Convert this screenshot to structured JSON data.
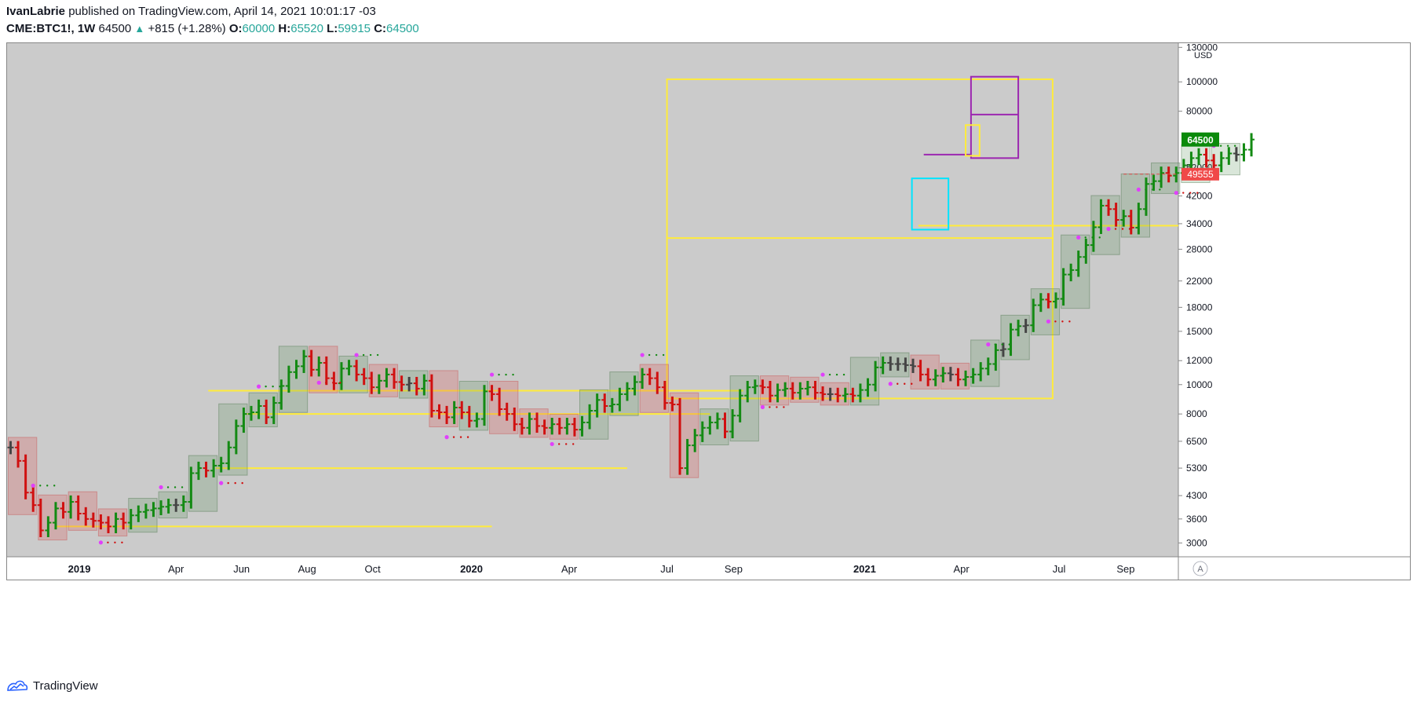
{
  "header": {
    "author": "IvanLabrie",
    "published_text": "published on TradingView.com, April 14, 2021 10:01:17 -03",
    "symbol": "CME:BTC1!, 1W",
    "last": "64500",
    "change_arrow": "▲",
    "change": "+815 (+1.28%)",
    "o_label": "O:",
    "o_value": "60000",
    "h_label": "H:",
    "h_value": "65520",
    "l_label": "L:",
    "l_value": "59915",
    "c_label": "C:",
    "c_value": "64500"
  },
  "footer": {
    "brand": "TradingView"
  },
  "colors": {
    "background": "#cbcbcb",
    "up_bar": "#138a13",
    "down_bar": "#d01010",
    "neutral_bar": "#444444",
    "yellow_lines": "#ffeb3b",
    "purple_box": "#9c27b0",
    "cyan_box": "#00e5ff",
    "last_price_badge": "#0b8a0b",
    "marker_badge": "#f04848"
  },
  "chart_data": {
    "type": "ohlc",
    "timeframe": "1W",
    "price_scale": "log",
    "unit": "USD",
    "y_ticks": [
      130000,
      100000,
      80000,
      52000,
      42000,
      34000,
      28000,
      22000,
      18000,
      15000,
      12000,
      10000,
      8000,
      6500,
      5300,
      4300,
      3600,
      3000
    ],
    "y_tick_labels": [
      "130000",
      "100000",
      "80000",
      "52000",
      "42000",
      "34000",
      "28000",
      "22000",
      "18000",
      "15000",
      "12000",
      "10000",
      "8000",
      "6500",
      "5300",
      "4300",
      "3600",
      "3000"
    ],
    "ylim": [
      2700,
      135000
    ],
    "x_ticks": [
      {
        "label": "2019",
        "date": "2019-01-01",
        "bold": true
      },
      {
        "label": "Apr",
        "date": "2019-04-01",
        "bold": false
      },
      {
        "label": "Jun",
        "date": "2019-06-01",
        "bold": false
      },
      {
        "label": "Aug",
        "date": "2019-08-01",
        "bold": false
      },
      {
        "label": "Oct",
        "date": "2019-10-01",
        "bold": false
      },
      {
        "label": "2020",
        "date": "2020-01-01",
        "bold": true
      },
      {
        "label": "Apr",
        "date": "2020-04-01",
        "bold": false
      },
      {
        "label": "Jul",
        "date": "2020-07-01",
        "bold": false
      },
      {
        "label": "Sep",
        "date": "2020-09-01",
        "bold": false
      },
      {
        "label": "2021",
        "date": "2021-01-01",
        "bold": true
      },
      {
        "label": "Apr",
        "date": "2021-04-01",
        "bold": false
      },
      {
        "label": "Jul",
        "date": "2021-07-01",
        "bold": false
      },
      {
        "label": "Sep",
        "date": "2021-09-01",
        "bold": false
      }
    ],
    "xlim": [
      "2018-10-25",
      "2021-10-20"
    ],
    "last_price": {
      "value": 64500,
      "label": "64500"
    },
    "marker_price": {
      "value": 49555,
      "label": "49555"
    },
    "corner_label": "A",
    "series": [
      {
        "name": "",
        "start_date": "2018-10-29",
        "interval_days": 7,
        "closes": [
          6200,
          5600,
          4400,
          4000,
          3300,
          3500,
          3900,
          3800,
          4100,
          3750,
          3600,
          3550,
          3500,
          3400,
          3600,
          3500,
          3700,
          3800,
          3850,
          3900,
          3950,
          4000,
          4000,
          4100,
          5100,
          5300,
          5200,
          5400,
          5500,
          6200,
          7300,
          8000,
          8100,
          8500,
          7800,
          8700,
          9900,
          11000,
          11500,
          12400,
          11200,
          11800,
          10500,
          10100,
          11300,
          11500,
          10800,
          10500,
          9800,
          10300,
          10800,
          10200,
          10000,
          10100,
          9700,
          10300,
          8200,
          8100,
          7800,
          8400,
          8100,
          7600,
          7700,
          9500,
          9300,
          8300,
          8000,
          7400,
          7200,
          7700,
          7300,
          7200,
          7400,
          7200,
          7400,
          7100,
          7500,
          8200,
          8900,
          8500,
          8600,
          9300,
          9700,
          10200,
          10800,
          10500,
          9800,
          8700,
          8600,
          5300,
          6300,
          6800,
          7200,
          7500,
          7700,
          7000,
          7900,
          9200,
          9800,
          9900,
          9800,
          9200,
          9600,
          9700,
          9400,
          9700,
          9800,
          9400,
          9300,
          9300,
          9200,
          9300,
          9200,
          9600,
          10000,
          11400,
          11800,
          11700,
          11700,
          11600,
          11500,
          10800,
          10400,
          10700,
          10900,
          10800,
          10400,
          10600,
          10800,
          11300,
          11700,
          13000,
          13100,
          15200,
          15600,
          15700,
          18300,
          19100,
          18800,
          19200,
          23100,
          23900,
          26400,
          28900,
          33100,
          39000,
          38000,
          35000,
          36000,
          33000,
          38000,
          46000,
          47000,
          50000,
          49000,
          50000,
          53000,
          56000,
          57500,
          55000,
          53000,
          56000,
          58000,
          57500,
          59700,
          64500
        ]
      }
    ]
  }
}
